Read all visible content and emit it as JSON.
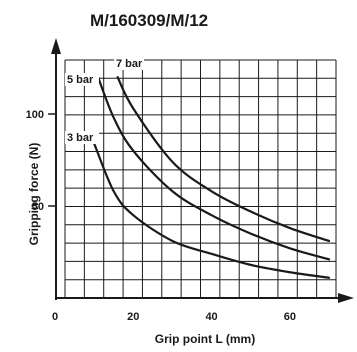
{
  "chart_data": {
    "type": "line",
    "title": "M/160309/M/12",
    "xlabel": "Grip point L (mm)",
    "ylabel": "Gripping force (N)",
    "xlim": [
      0,
      70
    ],
    "ylim": [
      0,
      120
    ],
    "x_ticks": [
      0,
      20,
      40,
      60
    ],
    "y_ticks": [
      50,
      100
    ],
    "x_tick_labels": [
      "0",
      "20",
      "40",
      "60"
    ],
    "y_tick_labels": [
      "50",
      "100"
    ],
    "grid": true,
    "series": [
      {
        "name": "3 bar",
        "x": [
          10,
          15,
          20,
          30,
          40,
          50,
          60,
          70
        ],
        "y": [
          84,
          58,
          45,
          31,
          24,
          18,
          14,
          11
        ]
      },
      {
        "name": "5 bar",
        "x": [
          11,
          15,
          20,
          30,
          40,
          50,
          60,
          70
        ],
        "y": [
          120,
          98,
          80,
          58,
          45,
          35,
          27,
          21
        ]
      },
      {
        "name": "7 bar",
        "x": [
          16,
          20,
          30,
          40,
          50,
          60,
          70
        ],
        "y": [
          120,
          103,
          74,
          58,
          47,
          38,
          31
        ]
      }
    ],
    "color": "#1a1a1a"
  }
}
